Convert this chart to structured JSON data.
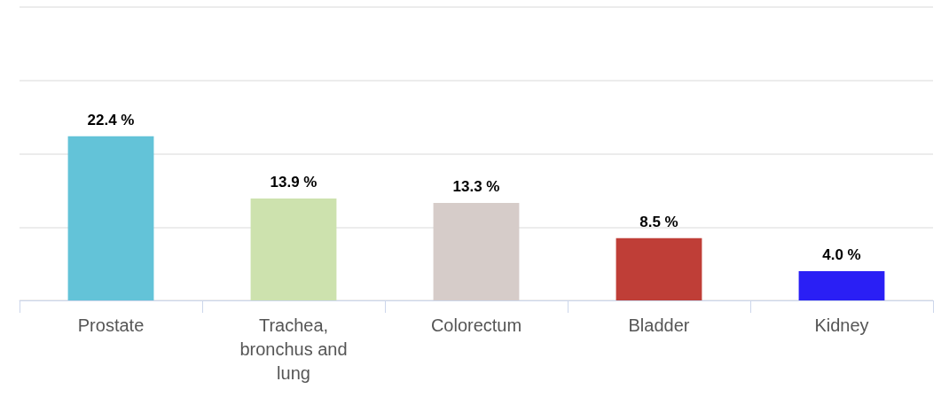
{
  "chart_data": {
    "type": "bar",
    "categories": [
      "Prostate",
      "Trachea, bronchus and lung",
      "Colorectum",
      "Bladder",
      "Kidney"
    ],
    "values": [
      22.4,
      13.9,
      13.3,
      8.5,
      4.0
    ],
    "colors": [
      "#63c3d8",
      "#cde2ae",
      "#d6ccc9",
      "#bf3e37",
      "#2a1ff5"
    ],
    "value_labels": [
      "22.4 %",
      "13.9 %",
      "13.3 %",
      "8.5 %",
      "4.0 %"
    ],
    "ylim": [
      0,
      40
    ],
    "yticks": [
      0,
      10,
      20,
      30,
      40
    ],
    "grid": "y",
    "tick_labels": "x"
  }
}
